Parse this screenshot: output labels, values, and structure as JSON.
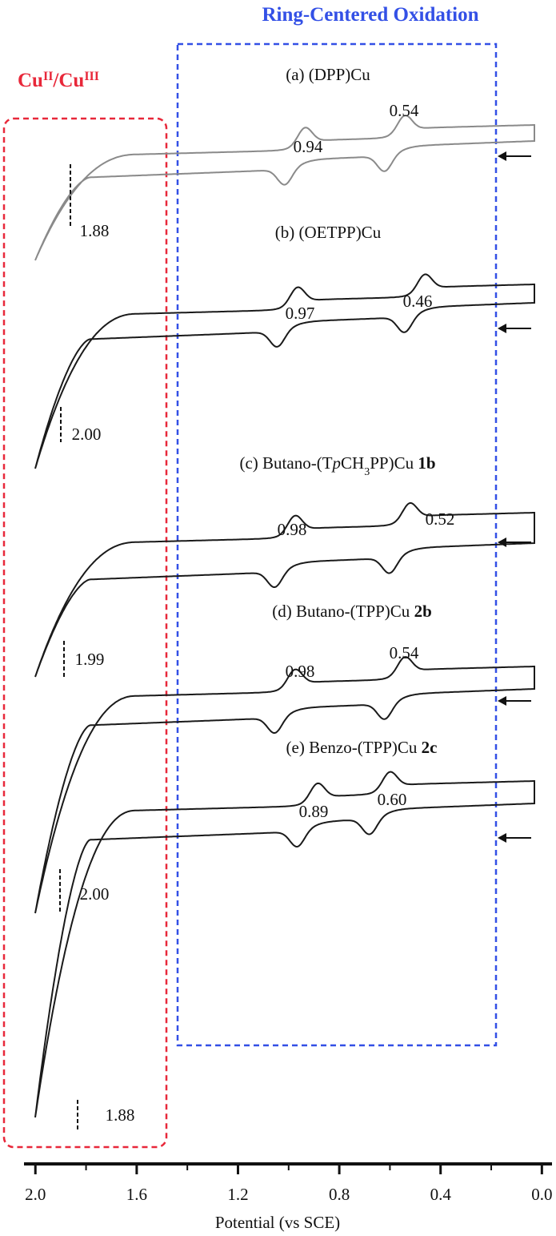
{
  "chart_data": {
    "type": "cyclic-voltammogram",
    "left_label": [
      {
        "text": "Cu",
        "style": "normal"
      },
      {
        "text": "II",
        "style": "sup"
      },
      {
        "text": "/Cu",
        "style": "normal"
      },
      {
        "text": "III",
        "style": "sup"
      }
    ],
    "right_label": "Ring-Centered Oxidation",
    "panels": [
      {
        "title": [
          {
            "text": "(a) (DPP)Cu",
            "style": "normal"
          }
        ],
        "potentials": [
          0.94,
          0.54
        ],
        "onset": 1.88,
        "color": "#8a8a8a"
      },
      {
        "title": [
          {
            "text": "(b) (OETPP)Cu",
            "style": "normal"
          }
        ],
        "potentials": [
          0.97,
          0.46
        ],
        "onset": 2,
        "onset_label": "2.00",
        "color": "#1a1a1a"
      },
      {
        "title": [
          {
            "text": "(c) Butano-(T",
            "style": "normal"
          },
          {
            "text": "p",
            "style": "italic"
          },
          {
            "text": "CH",
            "style": "normal"
          },
          {
            "text": "3",
            "style": "sub"
          },
          {
            "text": "PP)Cu ",
            "style": "normal"
          },
          {
            "text": "1b",
            "style": "bold"
          }
        ],
        "potentials": [
          0.98,
          0.52
        ],
        "onset": 1.99,
        "color": "#1a1a1a"
      },
      {
        "title": [
          {
            "text": "(d) Butano-(TPP)Cu ",
            "style": "normal"
          },
          {
            "text": "2b",
            "style": "bold"
          }
        ],
        "potentials": [
          0.98,
          0.54
        ],
        "onset": 2,
        "onset_label": "2.00",
        "color": "#1a1a1a"
      },
      {
        "title": [
          {
            "text": "(e) Benzo-(TPP)Cu ",
            "style": "normal"
          },
          {
            "text": "2c",
            "style": "bold"
          }
        ],
        "potentials": [
          0.89,
          0.6
        ],
        "value_labels": [
          "0.89",
          "0.60"
        ],
        "onset": 1.88,
        "color": "#1a1a1a"
      }
    ],
    "x_label": "Potential (vs SCE)",
    "xlim": [
      2.045,
      -0.04
    ],
    "xticks": [
      {
        "value": 2,
        "label": "2.0"
      },
      1.6,
      1.2,
      0.8,
      0.4,
      {
        "value": 0,
        "label": "0.0"
      }
    ]
  }
}
